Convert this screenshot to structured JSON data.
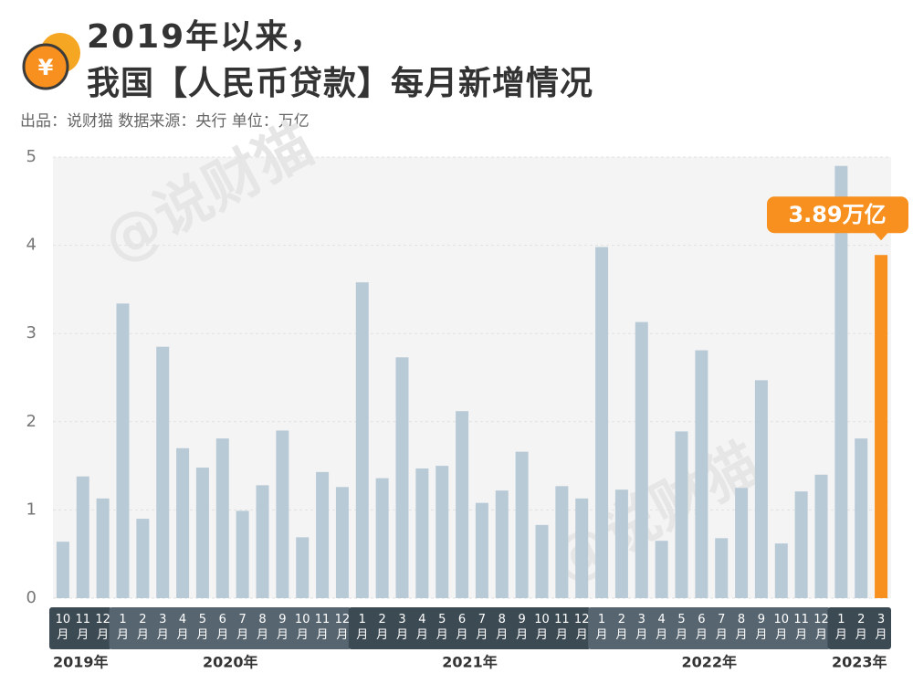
{
  "chart_data": {
    "type": "bar",
    "title": [
      "2019年以来，",
      "我国【人民币贷款】每月新增情况"
    ],
    "subtitle": "出品：说财猫  数据来源：央行  单位：万亿",
    "logo": "¥",
    "watermark": "@说财猫",
    "categories": [
      "10月",
      "11月",
      "12月",
      "1月",
      "2月",
      "3月",
      "4月",
      "5月",
      "6月",
      "7月",
      "8月",
      "9月",
      "10月",
      "11月",
      "12月",
      "1月",
      "2月",
      "3月",
      "4月",
      "5月",
      "6月",
      "7月",
      "8月",
      "9月",
      "10月",
      "11月",
      "12月",
      "1月",
      "2月",
      "3月",
      "4月",
      "5月",
      "6月",
      "7月",
      "8月",
      "9月",
      "10月",
      "11月",
      "12月",
      "1月",
      "2月",
      "3月"
    ],
    "years": [
      "2019年",
      "2020年",
      "2021年",
      "2022年",
      "2023年"
    ],
    "values": [
      0.64,
      1.38,
      1.13,
      3.34,
      0.9,
      2.85,
      1.7,
      1.48,
      1.81,
      0.99,
      1.28,
      1.9,
      0.69,
      1.43,
      1.26,
      3.58,
      1.36,
      2.73,
      1.47,
      1.5,
      2.12,
      1.08,
      1.22,
      1.66,
      0.83,
      1.27,
      1.13,
      3.98,
      1.23,
      3.13,
      0.65,
      1.89,
      2.81,
      0.68,
      1.25,
      2.47,
      0.62,
      1.21,
      1.4,
      4.9,
      1.81,
      3.89
    ],
    "value_labels": [
      null,
      null,
      null,
      null,
      null,
      null,
      null,
      null,
      null,
      null,
      null,
      null,
      null,
      null,
      null,
      null,
      null,
      null,
      null,
      null,
      null,
      null,
      null,
      null,
      null,
      null,
      null,
      null,
      null,
      null,
      null,
      null,
      null,
      null,
      null,
      null,
      null,
      null,
      null,
      null,
      null,
      "3.89万亿"
    ],
    "colors": [
      "#b9cad7",
      "#b9cad7",
      "#b9cad7",
      "#b9cad7",
      "#b9cad7",
      "#b9cad7",
      "#b9cad7",
      "#b9cad7",
      "#b9cad7",
      "#b9cad7",
      "#b9cad7",
      "#b9cad7",
      "#b9cad7",
      "#b9cad7",
      "#b9cad7",
      "#b9cad7",
      "#b9cad7",
      "#b9cad7",
      "#b9cad7",
      "#b9cad7",
      "#b9cad7",
      "#b9cad7",
      "#b9cad7",
      "#b9cad7",
      "#b9cad7",
      "#b9cad7",
      "#b9cad7",
      "#b9cad7",
      "#b9cad7",
      "#b9cad7",
      "#b9cad7",
      "#b9cad7",
      "#b9cad7",
      "#b9cad7",
      "#b9cad7",
      "#b9cad7",
      "#b9cad7",
      "#b9cad7",
      "#b9cad7",
      "#b9cad7",
      "#b9cad7",
      "#f7901e"
    ],
    "ylim": [
      0,
      5
    ],
    "yticks": [
      0,
      1,
      2,
      3,
      4,
      5
    ],
    "grid": true
  }
}
